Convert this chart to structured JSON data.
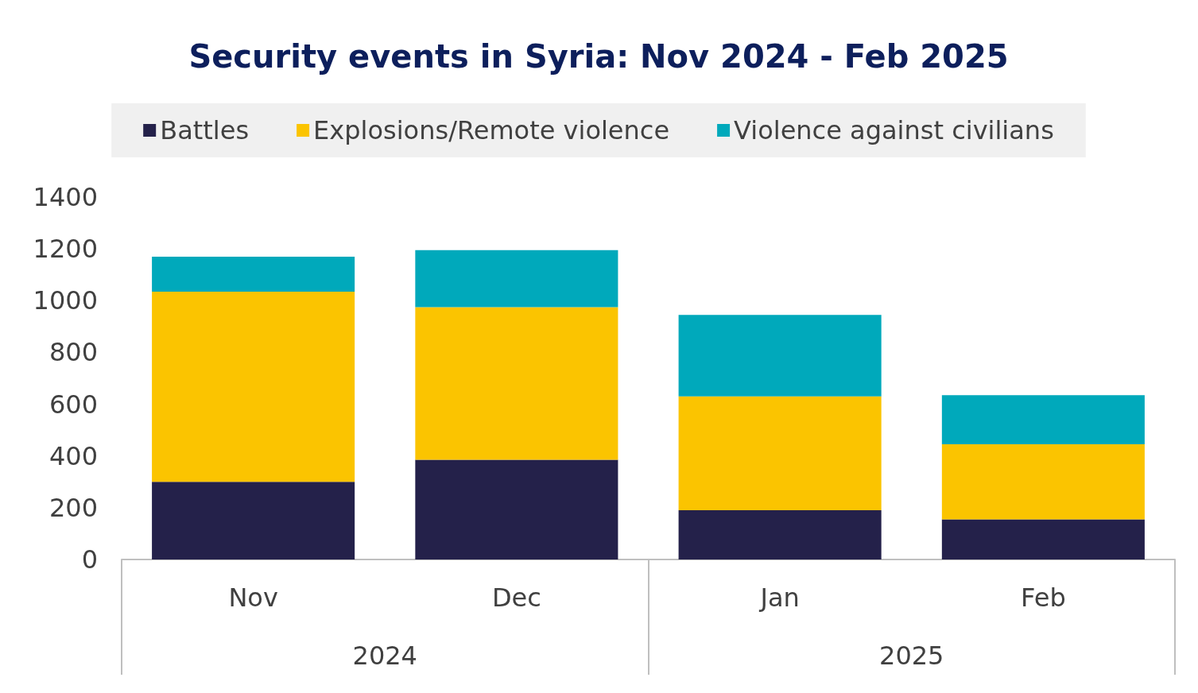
{
  "chart_data": {
    "type": "bar",
    "title": "Security events in Syria: Nov 2024 - Feb 2025",
    "categories": [
      "Nov",
      "Dec",
      "Jan",
      "Feb"
    ],
    "stacked": true,
    "series": [
      {
        "name": "Battles",
        "color": "#24214a",
        "values": [
          300,
          385,
          190,
          155
        ]
      },
      {
        "name": "Explosions/Remote violence",
        "color": "#fbc400",
        "values": [
          735,
          590,
          440,
          290
        ]
      },
      {
        "name": "Violence against civilians",
        "color": "#00a9bb",
        "values": [
          135,
          220,
          315,
          190
        ]
      }
    ],
    "ylim": [
      0,
      1400
    ],
    "yticks": [
      0,
      200,
      400,
      600,
      800,
      1000,
      1200,
      1400
    ],
    "grid": false,
    "legend": "top",
    "annotations": [
      "2024",
      "2025"
    ]
  }
}
